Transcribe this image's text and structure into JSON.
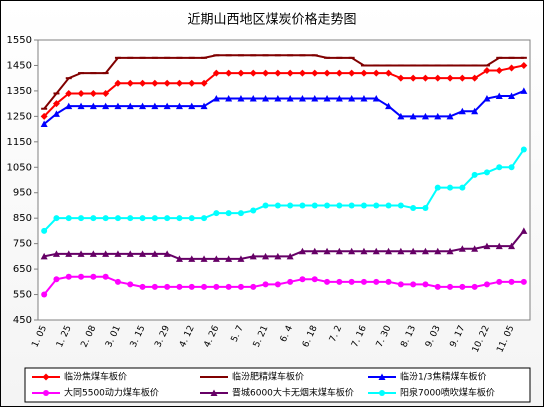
{
  "chart_data": {
    "type": "line",
    "title": "近期山西地区煤炭价格走势图",
    "categories": [
      "1. 05",
      null,
      "1. 25",
      null,
      "2. 08",
      null,
      "3. 01",
      null,
      "3. 15",
      null,
      "3. 29",
      null,
      "4. 12",
      null,
      "4. 26",
      null,
      "5. 7",
      null,
      "5. 21",
      null,
      "6. 4",
      null,
      "6. 18",
      null,
      "7. 2",
      null,
      "7. 16",
      null,
      "7. 30",
      null,
      "8. 13",
      null,
      "9. 03",
      null,
      "9. 17",
      null,
      "10. 22",
      null,
      "11. 05",
      null
    ],
    "ylim": [
      450,
      1550
    ],
    "yticks": [
      450,
      550,
      650,
      750,
      850,
      950,
      1050,
      1150,
      1250,
      1350,
      1450,
      1550
    ],
    "grid": false,
    "legend": "bottom",
    "series": [
      {
        "name": "临汾焦煤车板价",
        "color": "#ff0000",
        "marker": "diamond",
        "values": [
          1250,
          1300,
          1340,
          1340,
          1340,
          1340,
          1380,
          1380,
          1380,
          1380,
          1380,
          1380,
          1380,
          1380,
          1420,
          1420,
          1420,
          1420,
          1420,
          1420,
          1420,
          1420,
          1420,
          1420,
          1420,
          1420,
          1420,
          1420,
          1420,
          1400,
          1400,
          1400,
          1400,
          1400,
          1400,
          1400,
          1430,
          1430,
          1440,
          1450
        ]
      },
      {
        "name": "临汾肥精煤车板价",
        "color": "#800000",
        "marker": "dash",
        "values": [
          1280,
          1340,
          1400,
          1420,
          1420,
          1420,
          1480,
          1480,
          1480,
          1480,
          1480,
          1480,
          1480,
          1480,
          1490,
          1490,
          1490,
          1490,
          1490,
          1490,
          1490,
          1490,
          1490,
          1480,
          1480,
          1480,
          1450,
          1450,
          1450,
          1450,
          1450,
          1450,
          1450,
          1450,
          1450,
          1450,
          1450,
          1480,
          1480,
          1480
        ]
      },
      {
        "name": "临汾1/3焦精煤车板价",
        "color": "#0000ff",
        "marker": "triangle",
        "values": [
          1220,
          1260,
          1290,
          1290,
          1290,
          1290,
          1290,
          1290,
          1290,
          1290,
          1290,
          1290,
          1290,
          1290,
          1320,
          1320,
          1320,
          1320,
          1320,
          1320,
          1320,
          1320,
          1320,
          1320,
          1320,
          1320,
          1320,
          1320,
          1290,
          1250,
          1250,
          1250,
          1250,
          1250,
          1270,
          1270,
          1320,
          1330,
          1330,
          1350
        ]
      },
      {
        "name": "大同5500动力煤车板价",
        "color": "#ff00ff",
        "marker": "circle",
        "values": [
          550,
          610,
          620,
          620,
          620,
          620,
          600,
          590,
          580,
          580,
          580,
          580,
          580,
          580,
          580,
          580,
          580,
          580,
          590,
          590,
          600,
          610,
          610,
          600,
          600,
          600,
          600,
          600,
          600,
          590,
          590,
          590,
          580,
          580,
          580,
          580,
          590,
          600,
          600,
          600
        ]
      },
      {
        "name": "晋城6000大卡无烟末煤车板价",
        "color": "#660066",
        "marker": "triangle",
        "values": [
          700,
          710,
          710,
          710,
          710,
          710,
          710,
          710,
          710,
          710,
          710,
          690,
          690,
          690,
          690,
          690,
          690,
          700,
          700,
          700,
          700,
          720,
          720,
          720,
          720,
          720,
          720,
          720,
          720,
          720,
          720,
          720,
          720,
          720,
          730,
          730,
          740,
          740,
          740,
          800
        ]
      },
      {
        "name": "阳泉7000喷吹煤车板价",
        "color": "#00ffff",
        "marker": "circle",
        "values": [
          800,
          850,
          850,
          850,
          850,
          850,
          850,
          850,
          850,
          850,
          850,
          850,
          850,
          850,
          870,
          870,
          870,
          880,
          900,
          900,
          900,
          900,
          900,
          900,
          900,
          900,
          900,
          900,
          900,
          900,
          890,
          890,
          970,
          970,
          970,
          1020,
          1030,
          1050,
          1050,
          1120
        ]
      }
    ]
  }
}
